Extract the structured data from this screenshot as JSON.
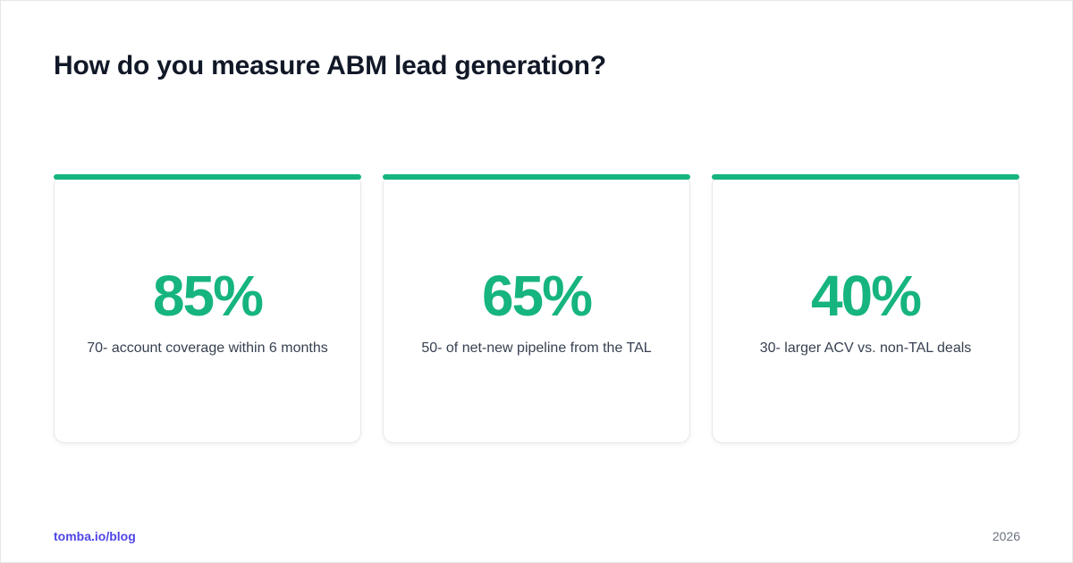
{
  "page": {
    "title": "How do you measure ABM lead generation?"
  },
  "cards": [
    {
      "value": "85%",
      "label": "70- account coverage within 6 months"
    },
    {
      "value": "65%",
      "label": "50- of net-new pipeline from the TAL"
    },
    {
      "value": "40%",
      "label": "30- larger ACV vs. non-TAL deals"
    }
  ],
  "footer": {
    "brand": "tomba.io/blog",
    "year": "2026"
  },
  "colors": {
    "accent": "#16b47f",
    "title": "#111827",
    "brand": "#4f46e5",
    "muted": "#6b7280"
  }
}
